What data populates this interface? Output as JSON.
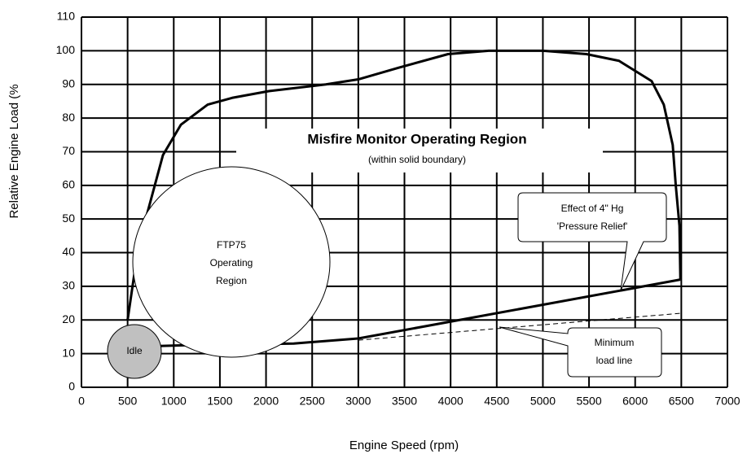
{
  "chart_data": {
    "type": "line",
    "title": "Misfire Monitor Operating Region",
    "subtitle": "(within solid boundary)",
    "xlabel": "Engine Speed (rpm)",
    "ylabel": "Relative Engine Load (%",
    "xlim": [
      0,
      7000
    ],
    "ylim": [
      0,
      110
    ],
    "xticks": [
      0,
      500,
      1000,
      1500,
      2000,
      2500,
      3000,
      3500,
      4000,
      4500,
      5000,
      5500,
      6000,
      6500,
      7000
    ],
    "yticks": [
      0,
      10,
      20,
      30,
      40,
      50,
      60,
      70,
      80,
      90,
      100,
      110
    ],
    "grid": true,
    "series": [
      {
        "color": "#000000",
        "style": "solid",
        "x": [
          500,
          580,
          706,
          883,
          1077,
          1368,
          1633,
          2030,
          2648,
          3000,
          3442,
          3972,
          4413,
          5000,
          5472,
          5825,
          6178,
          6310,
          6407,
          6440,
          6480,
          6490
        ],
        "values": [
          20,
          35,
          51,
          69,
          78,
          84,
          86,
          88,
          90,
          91.5,
          95,
          99,
          100,
          100,
          99,
          97,
          91,
          84,
          72,
          60,
          48,
          32
        ]
      },
      {
        "color": "#000000",
        "style": "solid",
        "x": [
          500,
          1150,
          2300,
          3000,
          6490
        ],
        "values": [
          12,
          12.5,
          13,
          14.5,
          32
        ]
      },
      {
        "color": "#000000",
        "style": "dashed",
        "x": [
          3000,
          6500
        ],
        "values": [
          14,
          22
        ]
      }
    ],
    "annotations": {
      "ftp75": [
        "FTP75",
        "Operating",
        "Region"
      ],
      "idle": "Idle",
      "pressure_relief": [
        "Effect of 4\" Hg",
        "'Pressure Relief'"
      ],
      "minimum_load": [
        "Minimum",
        "load line"
      ]
    }
  }
}
